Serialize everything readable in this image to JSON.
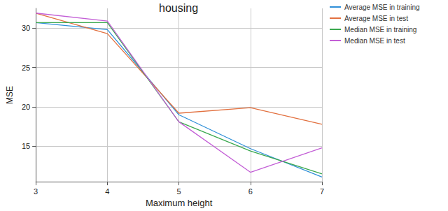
{
  "chart_data": {
    "type": "line",
    "title": "housing",
    "x_label": "Maximum height",
    "y_label": "MSE",
    "x": [
      3,
      4,
      5,
      6,
      7
    ],
    "series": [
      {
        "name": "Average MSE in training",
        "color": "#2f8fd8",
        "values": [
          30.7,
          29.8,
          19.0,
          14.7,
          11.1
        ]
      },
      {
        "name": "Average MSE in test",
        "color": "#e2703f",
        "values": [
          31.9,
          29.3,
          19.2,
          19.9,
          17.8
        ]
      },
      {
        "name": "Median MSE in training",
        "color": "#3aa84e",
        "values": [
          30.7,
          30.7,
          18.1,
          14.4,
          11.5
        ]
      },
      {
        "name": "Median MSE in test",
        "color": "#c35fd6",
        "values": [
          31.9,
          30.9,
          18.1,
          11.7,
          14.8
        ]
      }
    ],
    "xlim": [
      3,
      7
    ],
    "xticks": [
      3,
      4,
      5,
      6,
      7
    ],
    "ylim": [
      10.5,
      32.5
    ],
    "yticks": [
      15,
      20,
      25,
      30
    ],
    "grid": true,
    "legend": "right"
  }
}
